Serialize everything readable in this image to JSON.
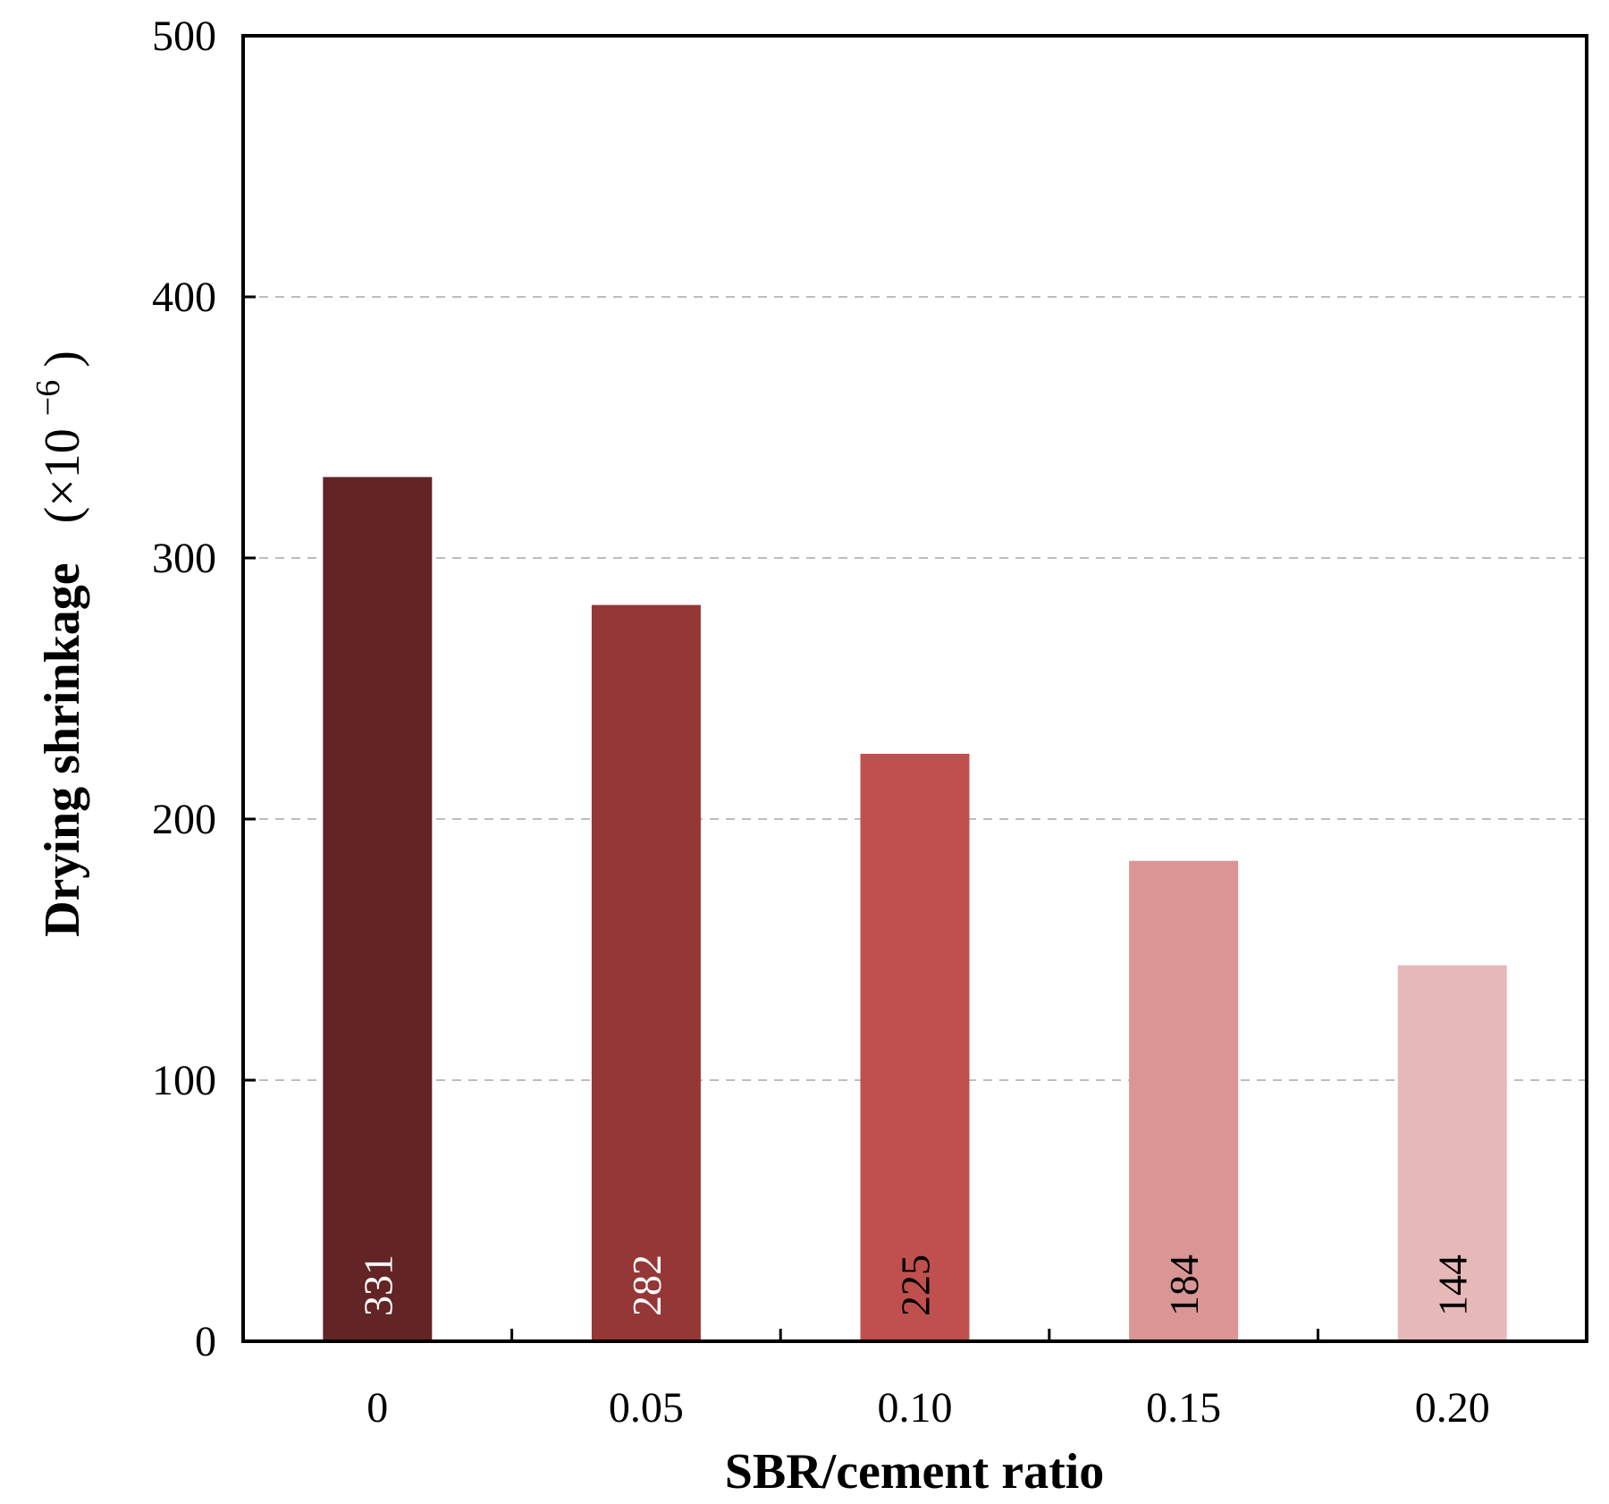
{
  "chart_data": {
    "type": "bar",
    "title": "",
    "xlabel": "SBR/cement ratio",
    "ylabel": "Drying shrinkage",
    "ylabel_unit_prefix": "(×10",
    "ylabel_unit_exp": "−6",
    "ylabel_unit_suffix": ")",
    "categories": [
      "0",
      "0.05",
      "0.10",
      "0.15",
      "0.20"
    ],
    "values": [
      331,
      282,
      225,
      184,
      144
    ],
    "data_labels": [
      "331",
      "282",
      "225",
      "184",
      "144"
    ],
    "bar_colors": [
      "#632426",
      "#953736",
      "#c0504d",
      "#d99694",
      "#e6b9b8"
    ],
    "label_colors": [
      "#ffffff",
      "#ffffff",
      "#000000",
      "#000000",
      "#000000"
    ],
    "ylim": [
      0,
      500
    ],
    "yticks": [
      "0",
      "100",
      "200",
      "300",
      "400",
      "500"
    ],
    "ytick_values": [
      0,
      100,
      200,
      300,
      400,
      500
    ],
    "grid": true,
    "legend": "none"
  }
}
